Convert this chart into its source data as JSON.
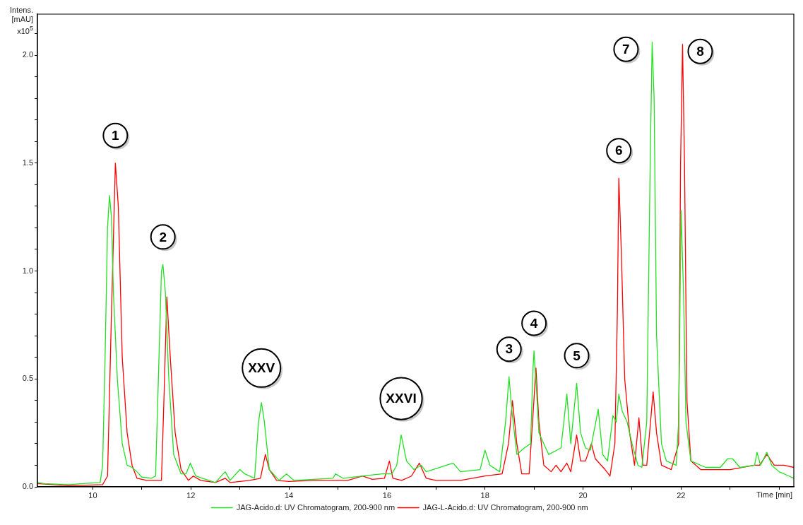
{
  "chart_data": {
    "type": "line",
    "xlabel": "Time [min]",
    "ylabel": "Intens. [mAU] x10$^{5}$",
    "xlim": [
      8.87,
      24.3
    ],
    "ylim": [
      0,
      2.19
    ],
    "xticks": [
      10,
      {
        "value": 11,
        "label": null
      },
      12,
      {
        "value": 13,
        "label": null
      },
      14,
      {
        "value": 15,
        "label": null
      },
      16,
      {
        "value": 17,
        "label": null
      },
      18,
      {
        "value": 19,
        "label": null
      },
      20,
      {
        "value": 21,
        "label": null
      },
      22,
      {
        "value": 23,
        "label": null
      },
      {
        "value": 24,
        "label": null
      }
    ],
    "yticks": [
      {
        "value": 0,
        "label": "0.0"
      },
      {
        "value": 0.1,
        "label": null
      },
      {
        "value": 0.2,
        "label": null
      },
      {
        "value": 0.3,
        "label": null
      },
      {
        "value": 0.4,
        "label": null
      },
      {
        "value": 0.5,
        "label": "0.5"
      },
      {
        "value": 0.6,
        "label": null
      },
      {
        "value": 0.7,
        "label": null
      },
      {
        "value": 0.8,
        "label": null
      },
      {
        "value": 0.9,
        "label": null
      },
      {
        "value": 1,
        "label": "1.0"
      },
      {
        "value": 1.1,
        "label": null
      },
      {
        "value": 1.2,
        "label": null
      },
      {
        "value": 1.3,
        "label": null
      },
      {
        "value": 1.4,
        "label": null
      },
      {
        "value": 1.5,
        "label": "1.5"
      },
      {
        "value": 1.6,
        "label": null
      },
      {
        "value": 1.7,
        "label": null
      },
      {
        "value": 1.8,
        "label": null
      },
      {
        "value": 1.9,
        "label": null
      },
      {
        "value": 2,
        "label": "2.0"
      },
      {
        "value": 2.1,
        "label": null
      }
    ],
    "grid": false,
    "legend": "bottom",
    "marker": "none",
    "line_style": "solid",
    "series": [
      {
        "name": "JAG-Acido.d: UV Chromatogram, 200-900 nm",
        "color": "#22e022",
        "x": [
          8.87,
          9.0,
          9.5,
          9.8,
          10.15,
          10.2,
          10.25,
          10.3,
          10.34,
          10.38,
          10.42,
          10.5,
          10.6,
          10.7,
          10.8,
          10.9,
          11.0,
          11.2,
          11.28,
          11.35,
          11.4,
          11.43,
          11.48,
          11.55,
          11.65,
          11.8,
          11.9,
          11.99,
          12.1,
          12.3,
          12.5,
          12.7,
          12.8,
          13.0,
          13.1,
          13.3,
          13.38,
          13.44,
          13.5,
          13.6,
          13.8,
          13.95,
          14.1,
          14.5,
          14.9,
          14.95,
          15.1,
          15.5,
          15.9,
          16.1,
          16.2,
          16.29,
          16.4,
          16.55,
          16.7,
          16.8,
          17.35,
          17.5,
          17.9,
          18.0,
          18.1,
          18.3,
          18.42,
          18.49,
          18.55,
          18.65,
          18.8,
          18.93,
          18.98,
          19.0,
          19.05,
          19.1,
          19.2,
          19.3,
          19.55,
          19.67,
          19.75,
          19.87,
          19.95,
          20.05,
          20.15,
          20.31,
          20.4,
          20.5,
          20.61,
          20.68,
          20.73,
          20.8,
          20.9,
          21.0,
          21.12,
          21.2,
          21.3,
          21.37,
          21.41,
          21.45,
          21.5,
          21.6,
          21.7,
          21.9,
          21.95,
          22.0,
          22.05,
          22.1,
          22.2,
          22.5,
          22.8,
          22.95,
          23.05,
          23.2,
          23.5,
          23.55,
          23.62,
          23.75,
          23.85,
          24.0,
          24.2,
          24.3
        ],
        "values": [
          0.02,
          0.015,
          0.01,
          0.015,
          0.02,
          0.1,
          0.6,
          1.2,
          1.35,
          1.25,
          0.9,
          0.5,
          0.2,
          0.1,
          0.09,
          0.07,
          0.045,
          0.04,
          0.05,
          0.6,
          1.0,
          1.03,
          0.9,
          0.5,
          0.15,
          0.06,
          0.06,
          0.11,
          0.05,
          0.035,
          0.02,
          0.07,
          0.03,
          0.08,
          0.06,
          0.04,
          0.3,
          0.39,
          0.3,
          0.08,
          0.03,
          0.06,
          0.03,
          0.035,
          0.04,
          0.06,
          0.04,
          0.05,
          0.06,
          0.06,
          0.1,
          0.24,
          0.12,
          0.08,
          0.1,
          0.07,
          0.11,
          0.07,
          0.08,
          0.17,
          0.1,
          0.07,
          0.3,
          0.51,
          0.35,
          0.15,
          0.18,
          0.2,
          0.55,
          0.63,
          0.45,
          0.25,
          0.2,
          0.15,
          0.18,
          0.43,
          0.2,
          0.48,
          0.25,
          0.18,
          0.17,
          0.36,
          0.15,
          0.12,
          0.33,
          0.3,
          0.43,
          0.35,
          0.3,
          0.2,
          0.1,
          0.09,
          0.3,
          1.5,
          2.06,
          1.8,
          0.7,
          0.2,
          0.12,
          0.1,
          0.3,
          1.28,
          0.9,
          0.3,
          0.12,
          0.09,
          0.09,
          0.13,
          0.13,
          0.09,
          0.1,
          0.16,
          0.1,
          0.16,
          0.1,
          0.07,
          0.05,
          0.04
        ]
      },
      {
        "name": "JAG-L-Acido.d: UV Chromatogram, 200-900 nm",
        "color": "#ff0000",
        "x": [
          8.87,
          9.5,
          10.2,
          10.3,
          10.38,
          10.46,
          10.52,
          10.6,
          10.7,
          10.8,
          10.9,
          11.1,
          11.4,
          11.45,
          11.51,
          11.58,
          11.68,
          11.8,
          11.95,
          12.05,
          12.2,
          12.5,
          12.7,
          12.8,
          13.2,
          13.42,
          13.52,
          13.6,
          13.75,
          14.0,
          14.5,
          15.0,
          15.2,
          15.5,
          15.7,
          15.95,
          16.05,
          16.12,
          16.3,
          16.5,
          16.66,
          16.8,
          17.0,
          17.5,
          18.0,
          18.35,
          18.48,
          18.56,
          18.65,
          18.75,
          18.9,
          18.97,
          19.04,
          19.1,
          19.2,
          19.35,
          19.45,
          19.55,
          19.67,
          19.75,
          19.87,
          19.95,
          20.05,
          20.17,
          20.25,
          20.45,
          20.55,
          20.65,
          20.7,
          20.73,
          20.78,
          20.85,
          20.95,
          21.05,
          21.14,
          21.22,
          21.3,
          21.43,
          21.5,
          21.6,
          21.8,
          21.95,
          21.99,
          22.03,
          22.07,
          22.12,
          22.2,
          22.4,
          23.0,
          23.5,
          23.6,
          23.75,
          23.9,
          24.1,
          24.3
        ],
        "values": [
          0.015,
          0.005,
          0.01,
          0.05,
          0.8,
          1.5,
          1.3,
          0.6,
          0.25,
          0.1,
          0.04,
          0.03,
          0.03,
          0.4,
          0.88,
          0.6,
          0.25,
          0.08,
          0.03,
          0.05,
          0.03,
          0.02,
          0.04,
          0.02,
          0.03,
          0.04,
          0.15,
          0.08,
          0.03,
          0.025,
          0.03,
          0.03,
          0.03,
          0.05,
          0.035,
          0.04,
          0.12,
          0.04,
          0.03,
          0.05,
          0.11,
          0.04,
          0.03,
          0.03,
          0.05,
          0.06,
          0.2,
          0.4,
          0.2,
          0.06,
          0.06,
          0.3,
          0.55,
          0.3,
          0.1,
          0.07,
          0.1,
          0.07,
          0.11,
          0.07,
          0.24,
          0.12,
          0.12,
          0.2,
          0.13,
          0.08,
          0.05,
          0.2,
          0.8,
          1.43,
          1.1,
          0.5,
          0.25,
          0.1,
          0.32,
          0.1,
          0.1,
          0.44,
          0.25,
          0.1,
          0.08,
          0.2,
          1.5,
          2.05,
          1.5,
          0.4,
          0.12,
          0.08,
          0.08,
          0.1,
          0.1,
          0.15,
          0.1,
          0.1,
          0.09
        ]
      }
    ],
    "annotations": [
      {
        "text": "1",
        "x": 10.46,
        "y": 1.5
      },
      {
        "text": "2",
        "x": 11.43,
        "y": 1.03
      },
      {
        "text": "XXV",
        "x": 13.44,
        "y": 0.39
      },
      {
        "text": "XXVI",
        "x": 16.29,
        "y": 0.24
      },
      {
        "text": "3",
        "x": 18.49,
        "y": 0.51
      },
      {
        "text": "4",
        "x": 19.0,
        "y": 0.63
      },
      {
        "text": "5",
        "x": 19.87,
        "y": 0.48
      },
      {
        "text": "6",
        "x": 20.73,
        "y": 1.43
      },
      {
        "text": "7",
        "x": 21.41,
        "y": 2.06
      },
      {
        "text": "8",
        "x": 22.03,
        "y": 2.05
      }
    ]
  }
}
